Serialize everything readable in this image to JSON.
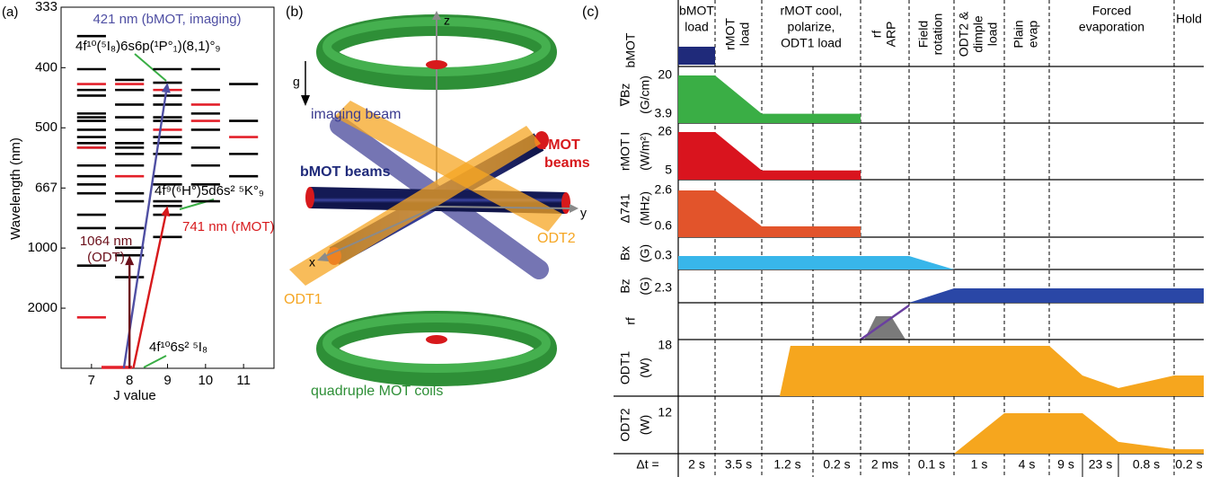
{
  "panel_a": {
    "label": "(a)",
    "type": "levels",
    "xlabel": "J value",
    "ylabel": "Wavelength (nm)",
    "xlim": [
      6.2,
      11.8
    ],
    "xticks": [
      7,
      8,
      9,
      10,
      11
    ],
    "yscale": "reciprocal",
    "ylim": [
      null,
      333
    ],
    "yticks": [
      333,
      400,
      500,
      667,
      1000,
      2000
    ],
    "series": [
      {
        "color": "#000000",
        "x": [
          7,
          7,
          7,
          7,
          7,
          7,
          7,
          7,
          7,
          7,
          7,
          7,
          7,
          7,
          7,
          7,
          7,
          7,
          8,
          8,
          8,
          8,
          8,
          8,
          8,
          8,
          8,
          8,
          8,
          8,
          8,
          8,
          8,
          9,
          9,
          9,
          9,
          9,
          9,
          9,
          9,
          9,
          9,
          9,
          9,
          9,
          9,
          9,
          10,
          10,
          10,
          10,
          10,
          10,
          10,
          10,
          11,
          11,
          11,
          11
        ],
        "values": [
          362,
          402,
          432,
          441,
          472,
          479,
          486,
          504,
          520,
          534,
          545,
          593,
          626,
          654,
          687,
          783,
          858,
          1171,
          417,
          432,
          456,
          479,
          504,
          534,
          545,
          561,
          593,
          687,
          720,
          858,
          997,
          1064,
          1320,
          402,
          421,
          441,
          456,
          479,
          486,
          520,
          534,
          561,
          626,
          654,
          720,
          741,
          783,
          916,
          402,
          432,
          472,
          504,
          545,
          593,
          654,
          720,
          423,
          486,
          561,
          626
        ]
      },
      {
        "color": "#e3202a",
        "x": [
          7,
          7,
          7,
          8,
          8,
          9,
          9,
          10,
          10,
          11
        ],
        "values": [
          423,
          545,
          2362,
          423,
          626,
          432,
          504,
          456,
          486,
          520
        ]
      }
    ],
    "transitions": [
      {
        "label": "421 nm (bMOT, imaging)",
        "wavelength": 421,
        "from_j": 7.85,
        "to_j": 9,
        "color": "#4f4fa3"
      },
      {
        "label": "741 nm (rMOT)",
        "wavelength": 741,
        "from_j": 8.1,
        "to_j": 9,
        "color": "#d7191c"
      },
      {
        "label": "1064 nm",
        "sublabel": "(ODT)",
        "wavelength": 1064,
        "from_j": 8,
        "to_j": 8,
        "color": "#6b0f1a"
      }
    ],
    "states": [
      "4f¹⁰(⁵I₈)6s6p(¹P°₁)(8,1)°₉",
      "4f⁹(⁶H°)5d6s² ⁵K°₉",
      "4f¹⁰6s² ⁵I₈"
    ]
  },
  "panel_b": {
    "label": "(b)",
    "axes": {
      "z": "z",
      "y": "y",
      "x": "x"
    },
    "gravity": "g",
    "imaging": "imaging beam",
    "bmot": "bMOT beams",
    "rmot": [
      "rMOT",
      "beams"
    ],
    "odt2": "ODT2",
    "odt1": "ODT1",
    "coils": "quadruple MOT coils"
  },
  "panel_c": {
    "label": "(c)",
    "type": "sequence",
    "phases": [
      {
        "lines": [
          "bMOT",
          "load"
        ],
        "start": 0,
        "end": 1
      },
      {
        "lines": [
          "rMOT",
          "load"
        ],
        "start": 1,
        "end": 2,
        "rotated": true
      },
      {
        "lines": [
          "rMOT cool,",
          "polarize,",
          "ODT1 load"
        ],
        "start": 2,
        "end": 4
      },
      {
        "lines": [
          "rf",
          "ARP"
        ],
        "start": 4,
        "end": 5,
        "rotated": true
      },
      {
        "lines": [
          "Field",
          "rotation"
        ],
        "start": 5,
        "end": 6,
        "rotated": true
      },
      {
        "lines": [
          "ODT2 &",
          "dimple",
          "load"
        ],
        "start": 6,
        "end": 7,
        "rotated": true
      },
      {
        "lines": [
          "Plain",
          "evap"
        ],
        "start": 7,
        "end": 8,
        "rotated": true
      },
      {
        "lines": [
          "Forced",
          "evaporation"
        ],
        "start": 8,
        "end": 11
      },
      {
        "lines": [
          "Hold"
        ],
        "start": 11,
        "end": 12
      }
    ],
    "duration_label": "Δt =",
    "durations": [
      "2 s",
      "3.5 s",
      "1.2 s",
      "0.2 s",
      "2 ms",
      "0.1 s",
      "1 s",
      "4 s",
      "9 s",
      "23 s",
      "0.8 s",
      "0.2 s"
    ],
    "rows": [
      {
        "label": "bMOT",
        "color": "#1f2a7a",
        "x": [
          0,
          1
        ],
        "values": [
          1,
          1
        ],
        "ylim": [
          0,
          1
        ]
      },
      {
        "label": "∇Bz",
        "unit": "(G/cm)",
        "color": "#3aae45",
        "x": [
          0,
          1,
          2,
          4
        ],
        "values": [
          20,
          20,
          3.9,
          3.9
        ],
        "ylim": [
          0,
          20
        ],
        "yticks": [
          20,
          3.9
        ]
      },
      {
        "label": "rMOT I",
        "unit": "(W/m²)",
        "color": "#d9141e",
        "x": [
          0,
          1,
          2,
          4
        ],
        "values": [
          26,
          26,
          5,
          5
        ],
        "ylim": [
          0,
          26
        ],
        "yticks": [
          26,
          5
        ]
      },
      {
        "label": "Δ741",
        "unit": "(MHz)",
        "color": "#e2542b",
        "x": [
          0,
          1,
          2,
          4
        ],
        "values": [
          2.6,
          2.6,
          0.6,
          0.6
        ],
        "ylim": [
          0,
          2.6
        ],
        "yticks": [
          2.6,
          0.6
        ]
      },
      {
        "label": "Bx",
        "unit": "(G)",
        "color": "#38b6ea",
        "x": [
          0,
          5,
          6
        ],
        "values": [
          0.3,
          0.3,
          0
        ],
        "ylim": [
          0,
          0.3
        ],
        "yticks": [
          0.3
        ]
      },
      {
        "label": "Bz",
        "unit": "(G)",
        "color": "#2a47a6",
        "x": [
          5,
          6,
          12
        ],
        "values": [
          0,
          2.3,
          2.3
        ],
        "ylim": [
          0,
          2.3
        ],
        "yticks": [
          2.3
        ]
      },
      {
        "label": "rf"
      },
      {
        "label": "ODT1",
        "unit": "(W)",
        "color": "#f6a61e",
        "x": [
          2.35,
          2.56,
          8,
          9,
          10,
          11,
          12
        ],
        "values": [
          0,
          18,
          18,
          7.4,
          2.9,
          7.4,
          7.4
        ],
        "ylim": [
          0,
          18
        ],
        "yticks": [
          18
        ]
      },
      {
        "label": "ODT2",
        "unit": "(W)",
        "color": "#f6a61e",
        "x": [
          6,
          7,
          9,
          10,
          11,
          12
        ],
        "values": [
          0,
          12,
          12,
          3.5,
          1.3,
          1.3
        ],
        "ylim": [
          0,
          12
        ],
        "yticks": [
          12
        ]
      }
    ]
  }
}
